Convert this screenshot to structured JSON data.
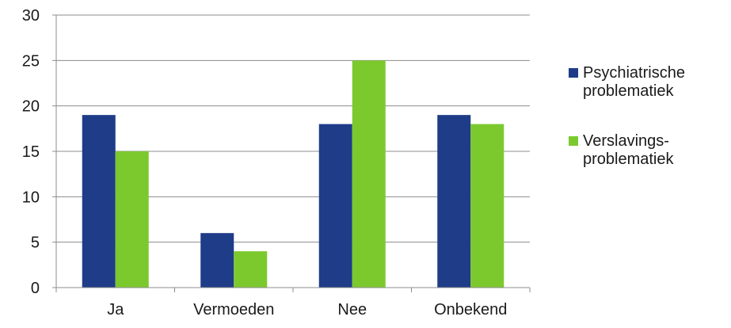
{
  "chart_data": {
    "type": "bar",
    "categories": [
      "Ja",
      "Vermoeden",
      "Nee",
      "Onbekend"
    ],
    "series": [
      {
        "name_lines": [
          "Psychiatrische",
          "problematiek"
        ],
        "values": [
          19,
          6,
          18,
          19
        ],
        "color": "#1f3c88"
      },
      {
        "name_lines": [
          "Verslavings-",
          "problematiek"
        ],
        "values": [
          15,
          4,
          25,
          18
        ],
        "color": "#7cc92e"
      }
    ],
    "ylim": [
      0,
      30
    ],
    "yticks": [
      0,
      5,
      10,
      15,
      20,
      25,
      30
    ],
    "grid": true,
    "legend_position": "right"
  }
}
